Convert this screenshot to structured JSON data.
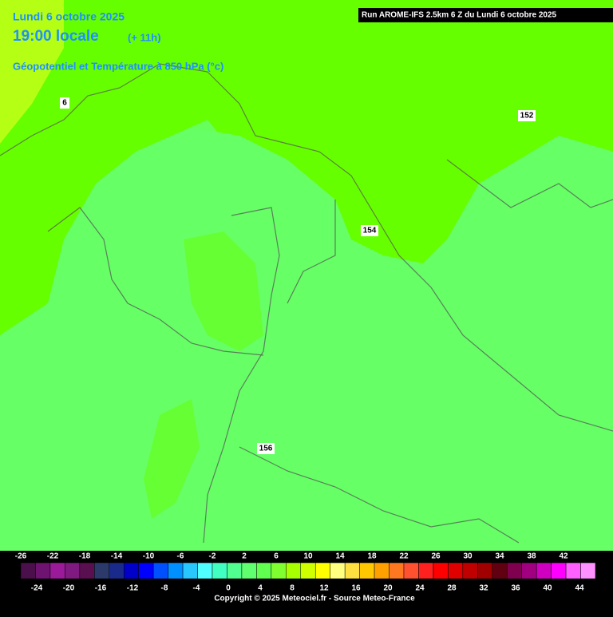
{
  "header": {
    "date": "Lundi 6 octobre 2025",
    "time": "19:00 locale",
    "lead": "(+ 11h)",
    "field": "Géopotentiel et Température à 850 hPa (°c)",
    "run": "Run AROME-IFS 2.5km 6 Z du Lundi 6 octobre 2025"
  },
  "contours": [
    {
      "label": "6"
    },
    {
      "label": "152"
    },
    {
      "label": "154"
    },
    {
      "label": "156"
    }
  ],
  "legend": {
    "lim": [
      -26,
      46
    ],
    "top_ticks": [
      -26,
      -22,
      -18,
      -14,
      -10,
      -6,
      -2,
      2,
      6,
      10,
      14,
      18,
      22,
      26,
      30,
      34,
      38,
      42
    ],
    "bottom_ticks": [
      -24,
      -20,
      -16,
      -12,
      -8,
      -4,
      0,
      4,
      8,
      12,
      16,
      20,
      24,
      28,
      32,
      36,
      40,
      44
    ],
    "colors": [
      "#4b0f4b",
      "#6e1470",
      "#9a1a9a",
      "#801a80",
      "#5a0f50",
      "#2b3a6b",
      "#1a2a8a",
      "#0000c8",
      "#0000ff",
      "#0050ff",
      "#0090ff",
      "#28c8ff",
      "#50ffff",
      "#40ffc0",
      "#50ff90",
      "#60ff70",
      "#60ff50",
      "#80ff30",
      "#a8ff00",
      "#d0ff00",
      "#ffff00",
      "#ffff80",
      "#ffe040",
      "#ffc800",
      "#ffa000",
      "#ff7820",
      "#ff5030",
      "#ff2020",
      "#ff0000",
      "#e00000",
      "#c00000",
      "#a00000",
      "#600010",
      "#800050",
      "#a00080",
      "#d000c0",
      "#ff00ff",
      "#ff60ff",
      "#ff90ff"
    ]
  },
  "copyright": "Copyright © 2025 Meteociel.fr - Source Meteo-France"
}
